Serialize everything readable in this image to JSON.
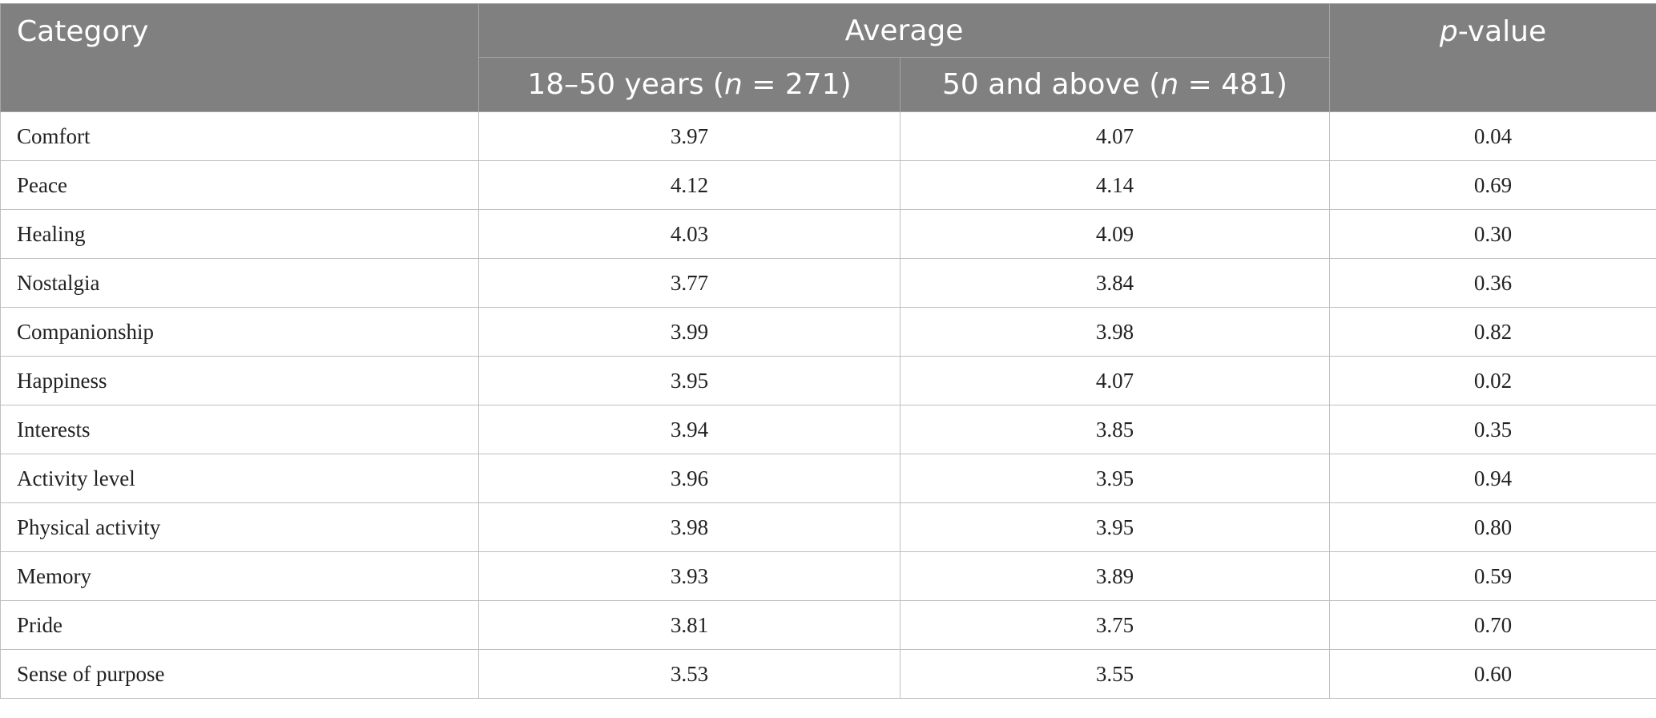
{
  "header": {
    "category": "Category",
    "average": "Average",
    "p_value_italic": "p",
    "p_value_rest": "-value",
    "group1": {
      "pre": "18–50 years (",
      "n": "n",
      "post": " = 271)"
    },
    "group2": {
      "pre": "50 and above (",
      "n": "n",
      "post": " = 481)"
    }
  },
  "rows": [
    {
      "category": "Comfort",
      "g1": "3.97",
      "g2": "4.07",
      "p": "0.04"
    },
    {
      "category": "Peace",
      "g1": "4.12",
      "g2": "4.14",
      "p": "0.69"
    },
    {
      "category": "Healing",
      "g1": "4.03",
      "g2": "4.09",
      "p": "0.30"
    },
    {
      "category": "Nostalgia",
      "g1": "3.77",
      "g2": "3.84",
      "p": "0.36"
    },
    {
      "category": "Companionship",
      "g1": "3.99",
      "g2": "3.98",
      "p": "0.82"
    },
    {
      "category": "Happiness",
      "g1": "3.95",
      "g2": "4.07",
      "p": "0.02"
    },
    {
      "category": "Interests",
      "g1": "3.94",
      "g2": "3.85",
      "p": "0.35"
    },
    {
      "category": "Activity level",
      "g1": "3.96",
      "g2": "3.95",
      "p": "0.94"
    },
    {
      "category": "Physical activity",
      "g1": "3.98",
      "g2": "3.95",
      "p": "0.80"
    },
    {
      "category": "Memory",
      "g1": "3.93",
      "g2": "3.89",
      "p": "0.59"
    },
    {
      "category": "Pride",
      "g1": "3.81",
      "g2": "3.75",
      "p": "0.70"
    },
    {
      "category": "Sense of purpose",
      "g1": "3.53",
      "g2": "3.55",
      "p": "0.60"
    }
  ],
  "colors": {
    "header_bg": "#808080",
    "header_text": "#ffffff",
    "grid": "#bfbfbf"
  }
}
